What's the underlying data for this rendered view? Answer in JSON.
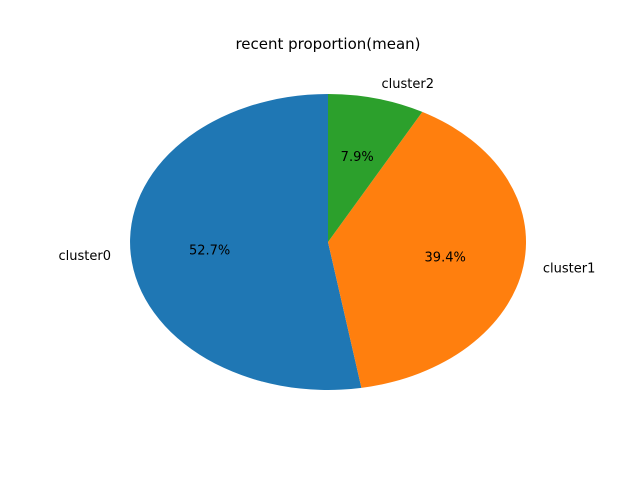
{
  "chart_data": {
    "type": "pie",
    "title": "recent proportion(mean)",
    "categories": [
      "cluster0",
      "cluster1",
      "cluster2"
    ],
    "values": [
      52.7,
      39.4,
      7.9
    ],
    "percent_labels": [
      "52.7%",
      "39.4%",
      "7.9%"
    ],
    "colors": [
      "#1f77b4",
      "#ff7f0e",
      "#2ca02c"
    ],
    "start_angle_deg": 90,
    "direction": "counterclockwise",
    "legend": "none"
  }
}
